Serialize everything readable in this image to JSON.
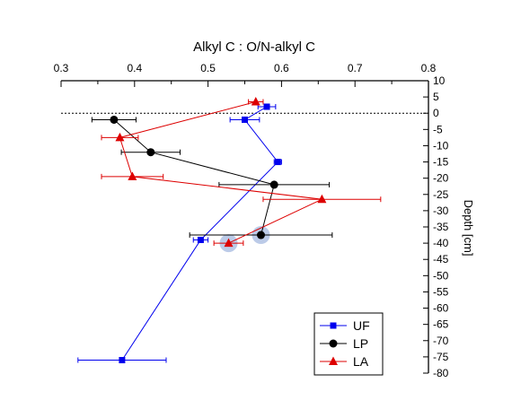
{
  "chart_data": {
    "type": "scatter",
    "title": "Alkyl C : O/N-alkyl C",
    "xlabel": "",
    "ylabel": "Depth [cm]",
    "xlim": [
      0.3,
      0.8
    ],
    "ylim": [
      -80,
      10
    ],
    "xticks": [
      "0.3",
      "0.4",
      "0.5",
      "0.6",
      "0.7",
      "0.8"
    ],
    "yticks": [
      "10",
      "5",
      "0",
      "-5",
      "-10",
      "-15",
      "-20",
      "-25",
      "-30",
      "-35",
      "-40",
      "-45",
      "-50",
      "-55",
      "-60",
      "-65",
      "-70",
      "-75",
      "-80"
    ],
    "x_axis_position": "top",
    "y_axis_position": "right",
    "reference_line": {
      "y": 0,
      "style": "dashed"
    },
    "legend_position": "bottom-right",
    "grid": false,
    "series": [
      {
        "name": "UF",
        "color": "#0000ee",
        "marker": "square",
        "points": [
          {
            "x": 0.58,
            "y": 2,
            "xerr": 0.012
          },
          {
            "x": 0.55,
            "y": -2,
            "xerr": 0.02
          },
          {
            "x": 0.595,
            "y": -15,
            "xerr": 0.005
          },
          {
            "x": 0.49,
            "y": -39,
            "xerr": 0.01
          },
          {
            "x": 0.383,
            "y": -76,
            "xerr": 0.06
          }
        ]
      },
      {
        "name": "LP",
        "color": "#000000",
        "marker": "circle",
        "points": [
          {
            "x": 0.372,
            "y": -2,
            "xerr": 0.03
          },
          {
            "x": 0.422,
            "y": -12,
            "xerr": 0.04
          },
          {
            "x": 0.59,
            "y": -22,
            "xerr": 0.075
          },
          {
            "x": 0.572,
            "y": -37.5,
            "xerr": 0.097
          }
        ]
      },
      {
        "name": "LA",
        "color": "#dd0000",
        "marker": "triangle",
        "points": [
          {
            "x": 0.565,
            "y": 3.5,
            "xerr": 0.01
          },
          {
            "x": 0.38,
            "y": -7.5,
            "xerr": 0.025
          },
          {
            "x": 0.397,
            "y": -19.5,
            "xerr": 0.042
          },
          {
            "x": 0.655,
            "y": -26.5,
            "xerr": 0.08
          },
          {
            "x": 0.528,
            "y": -40,
            "xerr": 0.02
          }
        ]
      }
    ],
    "highlights": [
      {
        "x": 0.528,
        "y": -40,
        "color": "#8fa8d8"
      },
      {
        "x": 0.572,
        "y": -37.5,
        "color": "#8fa8d8"
      }
    ]
  }
}
